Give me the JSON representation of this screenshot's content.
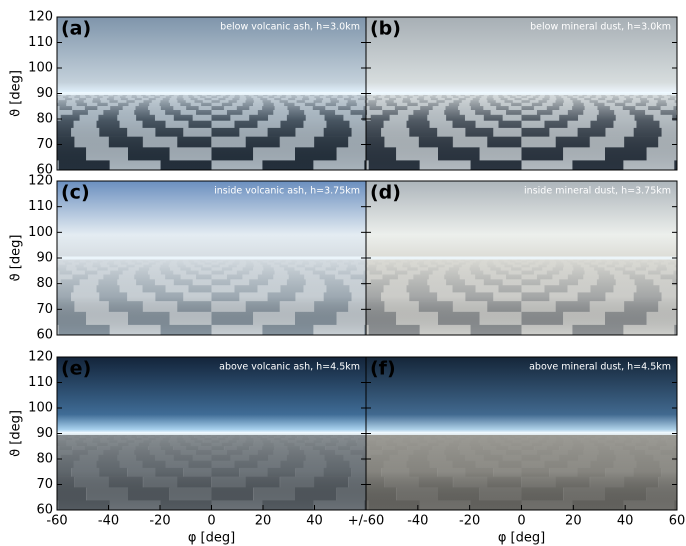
{
  "panels": [
    {
      "label": "(a)",
      "caption": "below volcanic ash, h=3.0km"
    },
    {
      "label": "(b)",
      "caption": "below mineral dust, h=3.0km"
    },
    {
      "label": "(c)",
      "caption": "inside volcanic ash, h=3.75km"
    },
    {
      "label": "(d)",
      "caption": "inside mineral dust, h=3.75km"
    },
    {
      "label": "(e)",
      "caption": "above volcanic ash, h=4.5km"
    },
    {
      "label": "(f)",
      "caption": "above mineral dust, h=4.5km"
    }
  ],
  "y_axis": {
    "label": "ϑ [deg]",
    "lim": [
      60,
      120
    ],
    "ticks": [
      60,
      70,
      80,
      90,
      100,
      110,
      120
    ]
  },
  "x_axis": {
    "label": "φ [deg]",
    "lim": [
      -60,
      60
    ],
    "left_ticks": [
      -60,
      -40,
      -20,
      0,
      20,
      40
    ],
    "seam_tick": {
      "value": 60,
      "label": "+/-60"
    },
    "right_ticks": [
      -40,
      -20,
      0,
      20,
      40,
      60
    ]
  }
}
